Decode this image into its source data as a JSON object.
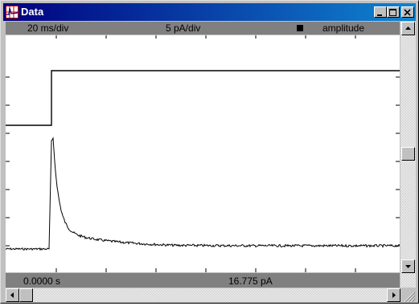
{
  "window": {
    "title": "Data"
  },
  "info_bar": {
    "time_scale": "20 ms/div",
    "current_scale": "5 pA/div",
    "marker_label": "amplitude"
  },
  "status_bar": {
    "time_readout": "0.0000 s",
    "current_readout": "16.775 pA"
  },
  "scrollbars": {
    "vertical_thumb_fraction": 0.53,
    "horizontal_thumb_fraction": 0.0
  },
  "icons": {
    "app": "trace-icon",
    "minimize": "minimize-icon",
    "maximize": "maximize-icon",
    "close": "close-icon",
    "up": "arrow-up-icon",
    "down": "arrow-down-icon",
    "left": "arrow-left-icon",
    "right": "arrow-right-icon",
    "marker": "square-marker-icon"
  }
}
